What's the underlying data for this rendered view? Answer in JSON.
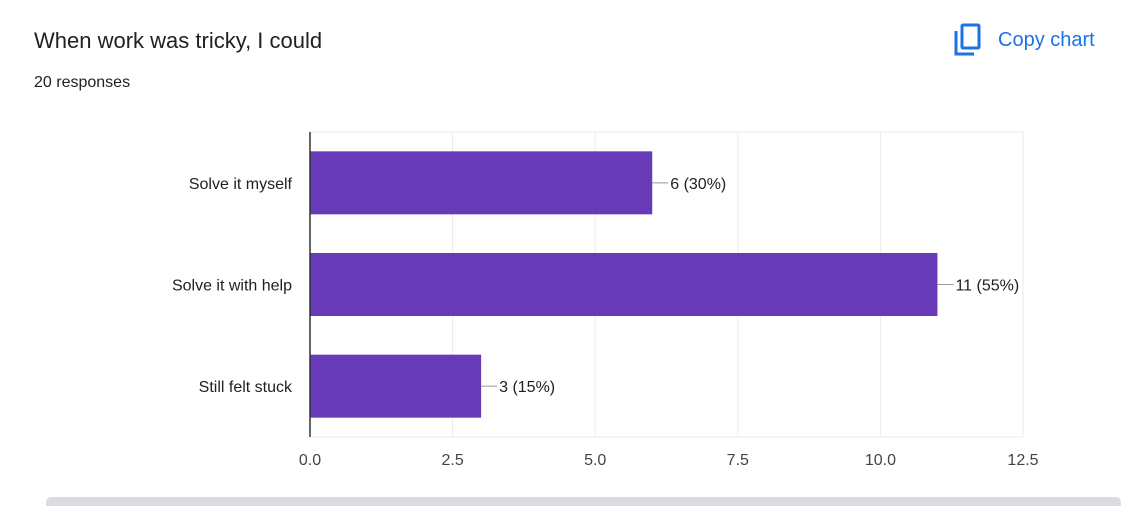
{
  "header": {
    "title": "When work was tricky, I could",
    "responses": "20 responses",
    "copy_label": "Copy chart",
    "copy_icon": "copy-icon"
  },
  "colors": {
    "bar": "#673ab7",
    "accent": "#1a73e8",
    "grid": "#ebebeb",
    "axis": "#333333",
    "leader": "#999999"
  },
  "chart_data": {
    "type": "bar",
    "orientation": "horizontal",
    "title": "When work was tricky, I could",
    "subtitle": "20 responses",
    "categories": [
      "Solve it myself",
      "Solve it with help",
      "Still felt stuck"
    ],
    "values": [
      6,
      11,
      3
    ],
    "data_labels": [
      "6 (30%)",
      "11 (55%)",
      "3 (15%)"
    ],
    "xlim": [
      0,
      12.5
    ],
    "xticks": [
      0,
      2.5,
      5,
      7.5,
      10,
      12.5
    ],
    "xtick_labels": [
      "0.0",
      "2.5",
      "5.0",
      "7.5",
      "10.0",
      "12.5"
    ],
    "grid": true,
    "xlabel": "",
    "ylabel": ""
  }
}
